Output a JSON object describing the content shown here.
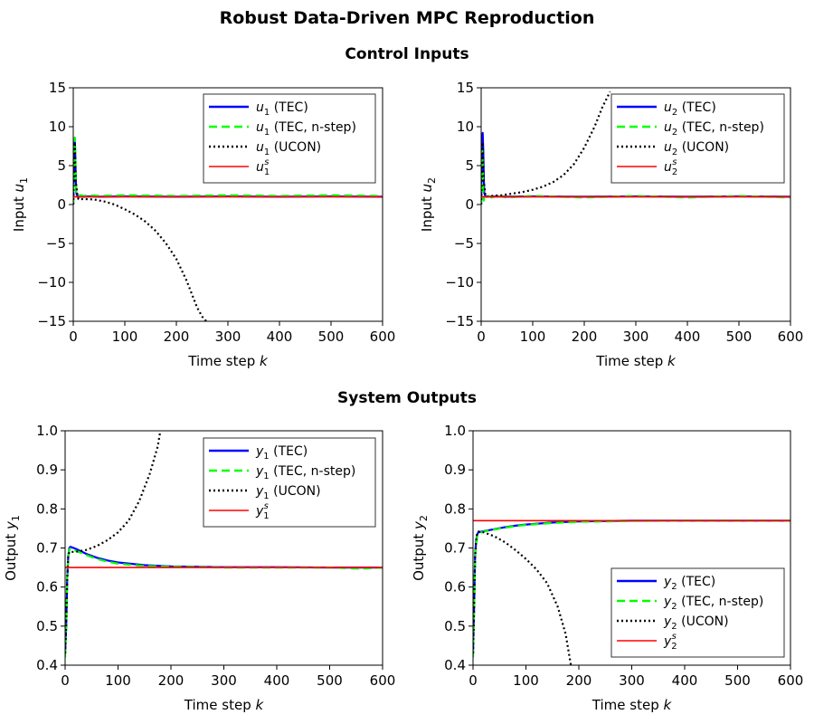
{
  "figure": {
    "title": "Robust Data-Driven MPC Reproduction",
    "section_titles": [
      "Control Inputs",
      "System Outputs"
    ]
  },
  "colors": {
    "tec": "#0000ff",
    "tec_nstep": "#00ff00",
    "ucon": "#000000",
    "setpoint": "#ff0000"
  },
  "chart_data": [
    {
      "type": "line",
      "xlabel": "Time step k",
      "ylabel": "Input u1",
      "xlim": [
        0,
        600
      ],
      "ylim": [
        -15,
        15
      ],
      "xticks": [
        "0",
        "100",
        "200",
        "300",
        "400",
        "500",
        "600"
      ],
      "yticks": [
        "15",
        "10",
        "5",
        "0",
        "−5",
        "−10",
        "−15"
      ],
      "legend_position": "top-right",
      "series": [
        {
          "name": "u1 (TEC)",
          "style": "solid",
          "color": "#0000ff",
          "x": [
            0,
            1,
            2,
            3,
            4,
            5,
            6,
            8,
            10,
            15,
            20,
            30,
            50,
            100,
            200,
            300,
            400,
            500,
            600
          ],
          "y": [
            0,
            5,
            7.5,
            8.5,
            6,
            3,
            1.5,
            1.1,
            1.0,
            1.05,
            1.0,
            1.05,
            1.0,
            1.05,
            1.0,
            1.05,
            1.0,
            1.05,
            1.0
          ]
        },
        {
          "name": "u1 (TEC, n-step)",
          "style": "dashed",
          "color": "#00ff00",
          "x": [
            0,
            1,
            2,
            3,
            4,
            5,
            6,
            8,
            10,
            15,
            20,
            30,
            50,
            100,
            200,
            300,
            400,
            500,
            600
          ],
          "y": [
            0,
            5,
            8,
            8.6,
            6.5,
            3,
            1.3,
            1.2,
            1.1,
            1.2,
            1.1,
            1.2,
            1.1,
            1.2,
            1.1,
            1.2,
            1.1,
            1.2,
            1.1
          ]
        },
        {
          "name": "u1 (UCON)",
          "style": "dotted",
          "color": "#000000",
          "x": [
            0,
            3,
            5,
            8,
            10,
            20,
            40,
            60,
            80,
            100,
            120,
            140,
            160,
            180,
            200,
            220,
            240,
            250,
            258
          ],
          "y": [
            0,
            8,
            3,
            1.2,
            0.7,
            0.7,
            0.65,
            0.4,
            0.0,
            -0.6,
            -1.3,
            -2.2,
            -3.4,
            -5.0,
            -7.0,
            -9.8,
            -13.2,
            -14.4,
            -15
          ]
        },
        {
          "name": "u1^s",
          "style": "solid",
          "color": "#ff0000",
          "x": [
            0,
            600
          ],
          "y": [
            1,
            1
          ]
        }
      ]
    },
    {
      "type": "line",
      "xlabel": "Time step k",
      "ylabel": "Input u2",
      "xlim": [
        0,
        600
      ],
      "ylim": [
        -15,
        15
      ],
      "xticks": [
        "0",
        "100",
        "200",
        "300",
        "400",
        "500",
        "600"
      ],
      "yticks": [
        "15",
        "10",
        "5",
        "0",
        "−5",
        "−10",
        "−15"
      ],
      "legend_position": "top-right",
      "series": [
        {
          "name": "u2 (TEC)",
          "style": "solid",
          "color": "#0000ff",
          "x": [
            0,
            1,
            2,
            3,
            4,
            5,
            6,
            8,
            10,
            15,
            20,
            30,
            50,
            100,
            200,
            300,
            400,
            500,
            600
          ],
          "y": [
            0,
            6,
            9,
            9.2,
            7,
            3.5,
            1.5,
            1.1,
            1.0,
            1.05,
            1.0,
            1.05,
            1.0,
            1.05,
            1.0,
            1.05,
            1.0,
            1.05,
            1.0
          ]
        },
        {
          "name": "u2 (TEC, n-step)",
          "style": "dashed",
          "color": "#00ff00",
          "x": [
            0,
            1,
            2,
            3,
            4,
            5,
            6,
            8,
            10,
            15,
            20,
            30,
            50,
            100,
            200,
            300,
            400,
            500,
            600
          ],
          "y": [
            0,
            5,
            7,
            5,
            2,
            0.5,
            1.0,
            1.2,
            0.9,
            1.1,
            0.9,
            1.1,
            0.9,
            1.1,
            0.9,
            1.1,
            0.9,
            1.1,
            0.9
          ]
        },
        {
          "name": "u2 (UCON)",
          "style": "dotted",
          "color": "#000000",
          "x": [
            0,
            3,
            5,
            8,
            10,
            20,
            40,
            60,
            80,
            100,
            120,
            140,
            160,
            180,
            200,
            220,
            235,
            250
          ],
          "y": [
            0,
            8,
            3,
            1.3,
            1.0,
            1.1,
            1.2,
            1.4,
            1.6,
            1.9,
            2.3,
            2.9,
            3.8,
            5.2,
            7.3,
            10.0,
            12.5,
            14.5
          ]
        },
        {
          "name": "u2^s",
          "style": "solid",
          "color": "#ff0000",
          "x": [
            0,
            600
          ],
          "y": [
            1,
            1
          ]
        }
      ]
    },
    {
      "type": "line",
      "xlabel": "Time step k",
      "ylabel": "Output y1",
      "xlim": [
        0,
        600
      ],
      "ylim": [
        0.4,
        1.0
      ],
      "xticks": [
        "0",
        "100",
        "200",
        "300",
        "400",
        "500",
        "600"
      ],
      "yticks": [
        "1.0",
        "0.9",
        "0.8",
        "0.7",
        "0.6",
        "0.5",
        "0.4"
      ],
      "legend_position": "top-right",
      "series": [
        {
          "name": "y1 (TEC)",
          "style": "solid",
          "color": "#0000ff",
          "x": [
            0,
            2,
            4,
            6,
            8,
            10,
            20,
            40,
            60,
            80,
            100,
            150,
            200,
            300,
            400,
            500,
            600
          ],
          "y": [
            0.43,
            0.5,
            0.62,
            0.68,
            0.7,
            0.703,
            0.698,
            0.685,
            0.675,
            0.668,
            0.663,
            0.656,
            0.653,
            0.651,
            0.651,
            0.65,
            0.65
          ]
        },
        {
          "name": "y1 (TEC, n-step)",
          "style": "dashed",
          "color": "#00ff00",
          "x": [
            0,
            2,
            4,
            6,
            8,
            10,
            20,
            40,
            60,
            80,
            100,
            150,
            200,
            300,
            400,
            500,
            560,
            600
          ],
          "y": [
            0.42,
            0.5,
            0.62,
            0.68,
            0.695,
            0.699,
            0.693,
            0.682,
            0.672,
            0.665,
            0.66,
            0.654,
            0.652,
            0.65,
            0.65,
            0.65,
            0.647,
            0.65
          ]
        },
        {
          "name": "y1 (UCON)",
          "style": "dotted",
          "color": "#000000",
          "x": [
            0,
            2,
            4,
            6,
            8,
            10,
            20,
            40,
            60,
            80,
            100,
            120,
            140,
            160,
            175,
            180
          ],
          "y": [
            0.43,
            0.5,
            0.62,
            0.68,
            0.69,
            0.69,
            0.69,
            0.695,
            0.705,
            0.72,
            0.74,
            0.77,
            0.82,
            0.89,
            0.96,
            1.0
          ]
        },
        {
          "name": "y1^s",
          "style": "solid",
          "color": "#ff0000",
          "x": [
            0,
            600
          ],
          "y": [
            0.65,
            0.65
          ]
        }
      ]
    },
    {
      "type": "line",
      "xlabel": "Time step k",
      "ylabel": "Output y2",
      "xlim": [
        0,
        600
      ],
      "ylim": [
        0.4,
        1.0
      ],
      "xticks": [
        "0",
        "100",
        "200",
        "300",
        "400",
        "500",
        "600"
      ],
      "yticks": [
        "1.0",
        "0.9",
        "0.8",
        "0.7",
        "0.6",
        "0.5",
        "0.4"
      ],
      "legend_position": "bottom-right",
      "series": [
        {
          "name": "y2 (TEC)",
          "style": "solid",
          "color": "#0000ff",
          "x": [
            0,
            2,
            4,
            6,
            8,
            10,
            20,
            40,
            60,
            80,
            100,
            150,
            200,
            300,
            400,
            500,
            600
          ],
          "y": [
            0.43,
            0.55,
            0.68,
            0.72,
            0.735,
            0.74,
            0.743,
            0.748,
            0.753,
            0.757,
            0.76,
            0.765,
            0.768,
            0.77,
            0.77,
            0.77,
            0.77
          ]
        },
        {
          "name": "y2 (TEC, n-step)",
          "style": "dashed",
          "color": "#00ff00",
          "x": [
            0,
            2,
            4,
            6,
            8,
            10,
            20,
            40,
            60,
            80,
            100,
            150,
            200,
            300,
            400,
            500,
            600
          ],
          "y": [
            0.42,
            0.55,
            0.67,
            0.71,
            0.73,
            0.737,
            0.742,
            0.747,
            0.752,
            0.756,
            0.759,
            0.764,
            0.767,
            0.769,
            0.77,
            0.77,
            0.77
          ]
        },
        {
          "name": "y2 (UCON)",
          "style": "dotted",
          "color": "#000000",
          "x": [
            0,
            2,
            4,
            6,
            8,
            10,
            20,
            40,
            60,
            80,
            100,
            120,
            140,
            160,
            175,
            185
          ],
          "y": [
            0.43,
            0.55,
            0.68,
            0.72,
            0.74,
            0.742,
            0.74,
            0.73,
            0.715,
            0.695,
            0.672,
            0.645,
            0.61,
            0.55,
            0.48,
            0.4
          ]
        },
        {
          "name": "y2^s",
          "style": "solid",
          "color": "#ff0000",
          "x": [
            0,
            600
          ],
          "y": [
            0.77,
            0.77
          ]
        }
      ]
    }
  ]
}
